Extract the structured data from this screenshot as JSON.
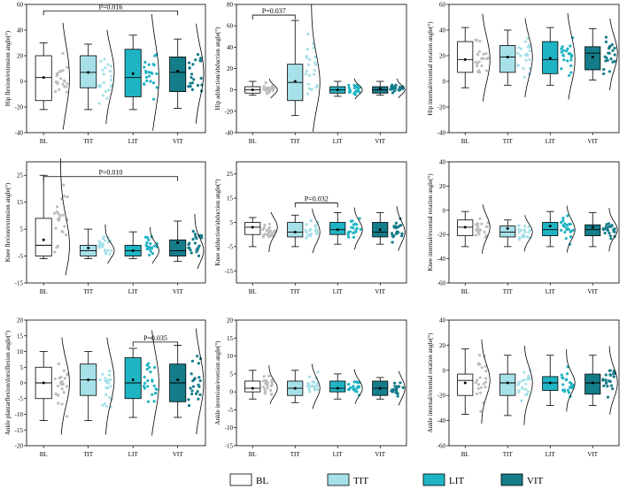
{
  "groups": [
    "BL",
    "TIT",
    "LIT",
    "VIT"
  ],
  "colors": {
    "BL": "#ffffff",
    "TIT": "#a6e0e8",
    "LIT": "#1fb4c4",
    "VIT": "#157c8a",
    "point_BL": "#bdbdbd",
    "point_TIT": "#a6e0e8",
    "point_LIT": "#1fb4c4",
    "point_VIT": "#157c8a"
  },
  "legend": [
    {
      "label": "BL",
      "color_key": "BL"
    },
    {
      "label": "TIT",
      "color_key": "TIT"
    },
    {
      "label": "LIT",
      "color_key": "LIT"
    },
    {
      "label": "VIT",
      "color_key": "VIT"
    }
  ],
  "chart_data": [
    {
      "type": "box",
      "panel": "hip-flexion",
      "ylabel": "Hip flexion/extension angle(°)",
      "ylim": [
        -40,
        60
      ],
      "yticks": [
        -40,
        -20,
        0,
        20,
        40,
        60
      ],
      "stats": [
        {
          "min": -22,
          "q1": -15,
          "median": 3,
          "q3": 20,
          "max": 30,
          "mean": 3
        },
        {
          "min": -22,
          "q1": -5,
          "median": 7,
          "q3": 20,
          "max": 29,
          "mean": 7
        },
        {
          "min": -22,
          "q1": -12,
          "median": 3,
          "q3": 25,
          "max": 36,
          "mean": 6
        },
        {
          "min": -21,
          "q1": -8,
          "median": 7,
          "q3": 19,
          "max": 33,
          "mean": 8
        }
      ],
      "sig": [
        {
          "from": 0,
          "to": 3,
          "label": "P=0.016",
          "y": 55
        }
      ]
    },
    {
      "type": "box",
      "panel": "hip-adduction",
      "ylabel": "Hip adduction/abduction angle(°)",
      "ylim": [
        -40,
        80
      ],
      "yticks": [
        -40,
        -20,
        0,
        20,
        40,
        60,
        80
      ],
      "stats": [
        {
          "min": -5,
          "q1": -3,
          "median": 0,
          "q3": 3,
          "max": 8,
          "mean": 0
        },
        {
          "min": -24,
          "q1": -10,
          "median": 7,
          "q3": 24,
          "max": 65,
          "mean": 8
        },
        {
          "min": -6,
          "q1": -3,
          "median": 0,
          "q3": 3,
          "max": 8,
          "mean": 0
        },
        {
          "min": -5,
          "q1": -3,
          "median": 0,
          "q3": 3,
          "max": 8,
          "mean": 1
        }
      ],
      "sig": [
        {
          "from": 0,
          "to": 1,
          "label": "P=0.037",
          "y": 70
        }
      ]
    },
    {
      "type": "box",
      "panel": "hip-rotation",
      "ylabel": "Hip internal/external rotation angle(°)",
      "ylim": [
        -40,
        60
      ],
      "yticks": [
        -40,
        -20,
        0,
        20,
        40,
        60
      ],
      "stats": [
        {
          "min": -5,
          "q1": 7,
          "median": 17,
          "q3": 31,
          "max": 42,
          "mean": 17
        },
        {
          "min": -3,
          "q1": 7,
          "median": 19,
          "q3": 28,
          "max": 40,
          "mean": 19
        },
        {
          "min": -3,
          "q1": 6,
          "median": 17,
          "q3": 31,
          "max": 42,
          "mean": 18
        },
        {
          "min": 1,
          "q1": 9,
          "median": 22,
          "q3": 27,
          "max": 41,
          "mean": 19
        }
      ],
      "sig": []
    },
    {
      "type": "box",
      "panel": "knee-flexion",
      "ylabel": "Knee flexion/extension angle(°)",
      "ylim": [
        -15,
        30
      ],
      "yticks": [
        -15,
        -5,
        5,
        15,
        25
      ],
      "stats": [
        {
          "min": -6,
          "q1": -5,
          "median": -1,
          "q3": 9,
          "max": 25,
          "mean": 1
        },
        {
          "min": -6,
          "q1": -5,
          "median": -3,
          "q3": -1,
          "max": 5,
          "mean": -2
        },
        {
          "min": -6,
          "q1": -5,
          "median": -3,
          "q3": -1,
          "max": 4,
          "mean": -3
        },
        {
          "min": -7,
          "q1": -5,
          "median": -3,
          "q3": 1,
          "max": 8,
          "mean": 0
        }
      ],
      "sig": [
        {
          "from": 0,
          "to": 3,
          "label": "P=0.010",
          "y": 24.5
        }
      ]
    },
    {
      "type": "box",
      "panel": "knee-adduction",
      "ylabel": "Knee adduction/abduction angle(°)",
      "ylim": [
        -20,
        30
      ],
      "yticks": [
        -15,
        -5,
        5,
        15,
        25
      ],
      "stats": [
        {
          "min": -5,
          "q1": 0,
          "median": 3,
          "q3": 5,
          "max": 7,
          "mean": 3
        },
        {
          "min": -5,
          "q1": -1,
          "median": 1,
          "q3": 5,
          "max": 8,
          "mean": 1
        },
        {
          "min": -4,
          "q1": 0,
          "median": 2,
          "q3": 5,
          "max": 9,
          "mean": 2
        },
        {
          "min": -4,
          "q1": -1,
          "median": 1,
          "q3": 5,
          "max": 9,
          "mean": 2
        }
      ],
      "sig": [
        {
          "from": 1,
          "to": 2,
          "label": "P=0.032",
          "y": 13
        }
      ]
    },
    {
      "type": "box",
      "panel": "knee-rotation",
      "ylabel": "Knee internal/external rotation angle(°)",
      "ylim": [
        -60,
        40
      ],
      "yticks": [
        -60,
        -40,
        -20,
        0,
        20,
        40
      ],
      "stats": [
        {
          "min": -30,
          "q1": -21,
          "median": -14,
          "q3": -8,
          "max": -1,
          "mean": -14
        },
        {
          "min": -30,
          "q1": -22,
          "median": -18,
          "q3": -13,
          "max": -8,
          "mean": -15
        },
        {
          "min": -30,
          "q1": -21,
          "median": -16,
          "q3": -10,
          "max": -1,
          "mean": -13
        },
        {
          "min": -30,
          "q1": -21,
          "median": -16,
          "q3": -12,
          "max": -2,
          "mean": -14
        }
      ],
      "sig": []
    },
    {
      "type": "box",
      "panel": "ankle-plantar",
      "ylabel": "Ankle plantarflexion/dorsiflexion angle(°)",
      "ylim": [
        -20,
        20
      ],
      "yticks": [
        -20,
        -15,
        -10,
        -5,
        0,
        5,
        10,
        15,
        20
      ],
      "stats": [
        {
          "min": -12,
          "q1": -5,
          "median": 0,
          "q3": 5,
          "max": 10,
          "mean": 0
        },
        {
          "min": -12,
          "q1": -4,
          "median": 1,
          "q3": 6,
          "max": 10,
          "mean": 1
        },
        {
          "min": -11,
          "q1": -5,
          "median": 0,
          "q3": 8,
          "max": 11,
          "mean": 1
        },
        {
          "min": -11,
          "q1": -6,
          "median": 0,
          "q3": 6,
          "max": 12,
          "mean": 1
        }
      ],
      "sig": [
        {
          "from": 2,
          "to": 3,
          "label": "P=0.035",
          "y": 13
        }
      ]
    },
    {
      "type": "box",
      "panel": "ankle-inversion",
      "ylabel": "Ankle inversion/eversion angle(°)",
      "ylim": [
        -15,
        20
      ],
      "yticks": [
        -15,
        -10,
        -5,
        0,
        5,
        10,
        15,
        20
      ],
      "stats": [
        {
          "min": -2,
          "q1": 0,
          "median": 1,
          "q3": 3,
          "max": 6,
          "mean": 1
        },
        {
          "min": -3,
          "q1": -1,
          "median": 1,
          "q3": 3,
          "max": 6,
          "mean": 1
        },
        {
          "min": -2,
          "q1": 0,
          "median": 1,
          "q3": 3,
          "max": 5,
          "mean": 1
        },
        {
          "min": -2,
          "q1": -1,
          "median": 1,
          "q3": 3,
          "max": 4,
          "mean": 1
        }
      ],
      "sig": []
    },
    {
      "type": "box",
      "panel": "ankle-rotation",
      "ylabel": "Ankle internal/external rotation angle(°)",
      "ylim": [
        -60,
        40
      ],
      "yticks": [
        -60,
        -40,
        -20,
        0,
        20,
        40
      ],
      "stats": [
        {
          "min": -35,
          "q1": -20,
          "median": -8,
          "q3": -3,
          "max": 17,
          "mean": -10
        },
        {
          "min": -36,
          "q1": -20,
          "median": -10,
          "q3": -3,
          "max": 12,
          "mean": -10
        },
        {
          "min": -28,
          "q1": -16,
          "median": -10,
          "q3": -5,
          "max": 12,
          "mean": -10
        },
        {
          "min": -28,
          "q1": -19,
          "median": -10,
          "q3": -3,
          "max": 12,
          "mean": -10
        }
      ],
      "sig": []
    }
  ]
}
